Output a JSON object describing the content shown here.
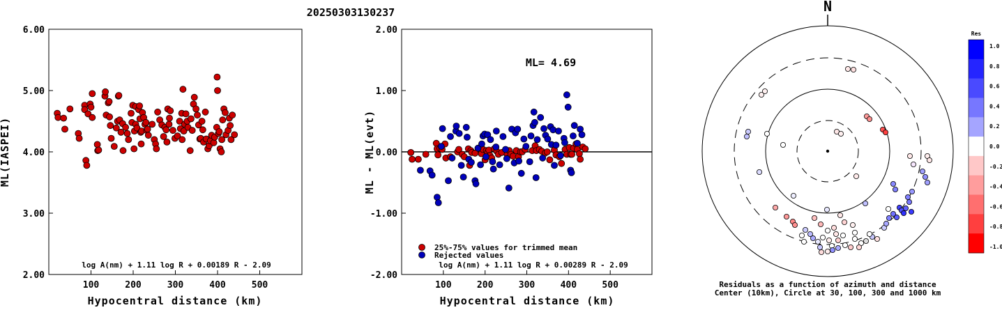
{
  "title": "20250303130237",
  "chart_data": [
    {
      "type": "scatter",
      "name": "left",
      "xlabel": "Hypocentral distance (km)",
      "ylabel": "ML(IASPEI)",
      "xlim": [
        0,
        600
      ],
      "ylim": [
        2.0,
        6.0
      ],
      "xticks": [
        "100",
        "200",
        "300",
        "400",
        "500"
      ],
      "yticks": [
        "2.00",
        "3.00",
        "4.00",
        "5.00",
        "6.00"
      ],
      "formula": "log A(nm) + 1.11 log R + 0.00189 R - 2.09",
      "marker_color": "#cc0000",
      "points": [
        [
          20,
          4.63
        ],
        [
          22,
          4.56
        ],
        [
          35,
          4.55
        ],
        [
          38,
          4.37
        ],
        [
          50,
          4.7
        ],
        [
          70,
          4.3
        ],
        [
          72,
          4.22
        ],
        [
          85,
          4.76
        ],
        [
          85,
          4.69
        ],
        [
          88,
          3.86
        ],
        [
          90,
          3.78
        ],
        [
          93,
          4.62
        ],
        [
          98,
          4.78
        ],
        [
          100,
          4.73
        ],
        [
          103,
          4.56
        ],
        [
          103,
          4.95
        ],
        [
          115,
          4.12
        ],
        [
          116,
          4.02
        ],
        [
          118,
          4.03
        ],
        [
          133,
          4.91
        ],
        [
          134,
          4.98
        ],
        [
          136,
          4.6
        ],
        [
          141,
          4.8
        ],
        [
          143,
          4.82
        ],
        [
          144,
          4.57
        ],
        [
          146,
          4.43
        ],
        [
          148,
          4.22
        ],
        [
          155,
          4.09
        ],
        [
          160,
          4.39
        ],
        [
          163,
          4.5
        ],
        [
          165,
          4.91
        ],
        [
          166,
          4.92
        ],
        [
          168,
          4.52
        ],
        [
          171,
          4.32
        ],
        [
          175,
          4.46
        ],
        [
          176,
          4.02
        ],
        [
          182,
          4.4
        ],
        [
          186,
          4.3
        ],
        [
          189,
          4.2
        ],
        [
          195,
          4.63
        ],
        [
          197,
          4.48
        ],
        [
          199,
          4.76
        ],
        [
          202,
          4.05
        ],
        [
          203,
          4.34
        ],
        [
          206,
          4.74
        ],
        [
          206,
          4.45
        ],
        [
          209,
          4.39
        ],
        [
          213,
          4.69
        ],
        [
          215,
          4.75
        ],
        [
          216,
          4.54
        ],
        [
          218,
          4.32
        ],
        [
          219,
          4.13
        ],
        [
          220,
          4.34
        ],
        [
          222,
          4.64
        ],
        [
          225,
          4.56
        ],
        [
          228,
          4.45
        ],
        [
          230,
          4.48
        ],
        [
          232,
          4.35
        ],
        [
          234,
          4.37
        ],
        [
          236,
          4.27
        ],
        [
          245,
          4.45
        ],
        [
          250,
          4.2
        ],
        [
          253,
          4.13
        ],
        [
          255,
          4.05
        ],
        [
          258,
          4.65
        ],
        [
          263,
          4.52
        ],
        [
          268,
          4.44
        ],
        [
          272,
          4.25
        ],
        [
          275,
          4.4
        ],
        [
          278,
          4.36
        ],
        [
          280,
          4.16
        ],
        [
          282,
          4.7
        ],
        [
          285,
          4.45
        ],
        [
          286,
          4.55
        ],
        [
          288,
          4.67
        ],
        [
          294,
          4.35
        ],
        [
          299,
          4.22
        ],
        [
          305,
          4.26
        ],
        [
          310,
          4.5
        ],
        [
          312,
          4.38
        ],
        [
          315,
          4.63
        ],
        [
          316,
          4.2
        ],
        [
          318,
          5.02
        ],
        [
          320,
          4.34
        ],
        [
          322,
          4.45
        ],
        [
          325,
          4.62
        ],
        [
          328,
          4.5
        ],
        [
          330,
          4.4
        ],
        [
          335,
          4.02
        ],
        [
          337,
          4.54
        ],
        [
          340,
          4.35
        ],
        [
          343,
          4.78
        ],
        [
          345,
          4.89
        ],
        [
          349,
          4.7
        ],
        [
          352,
          4.6
        ],
        [
          355,
          4.44
        ],
        [
          358,
          4.21
        ],
        [
          360,
          4.22
        ],
        [
          363,
          4.5
        ],
        [
          365,
          4.36
        ],
        [
          367,
          4.16
        ],
        [
          371,
          4.65
        ],
        [
          373,
          4.21
        ],
        [
          377,
          4.05
        ],
        [
          380,
          4.1
        ],
        [
          383,
          4.18
        ],
        [
          386,
          4.27
        ],
        [
          391,
          4.15
        ],
        [
          393,
          4.24
        ],
        [
          398,
          4.4
        ],
        [
          399,
          5.22
        ],
        [
          400,
          5.0
        ],
        [
          402,
          4.3
        ],
        [
          404,
          4.33
        ],
        [
          406,
          4.05
        ],
        [
          409,
          4.0
        ],
        [
          410,
          4.2
        ],
        [
          412,
          4.52
        ],
        [
          415,
          4.7
        ],
        [
          418,
          4.64
        ],
        [
          420,
          4.28
        ],
        [
          425,
          4.35
        ],
        [
          428,
          4.55
        ],
        [
          430,
          4.43
        ],
        [
          432,
          4.2
        ],
        [
          435,
          4.6
        ],
        [
          440,
          4.28
        ]
      ]
    },
    {
      "type": "scatter",
      "name": "middle",
      "xlabel": "Hypocentral distance (km)",
      "ylabel": "ML - ML(evt)",
      "xlim": [
        0,
        600
      ],
      "ylim": [
        -2.0,
        2.0
      ],
      "xticks": [
        "100",
        "200",
        "300",
        "400",
        "500"
      ],
      "yticks": [
        "-2.00",
        "-1.00",
        "0.00",
        "1.00",
        "2.00"
      ],
      "annotation": "ML= 4.69",
      "legend": [
        "25%-75% values for trimmed mean",
        "Rejected values"
      ],
      "formula": "log A(nm) + 1.11 log R + 0.00289 R - 2.09",
      "series": [
        {
          "color": "#cc0000",
          "points": [
            [
              22,
              -0.01
            ],
            [
              25,
              -0.12
            ],
            [
              40,
              -0.12
            ],
            [
              58,
              -0.04
            ],
            [
              83,
              0.14
            ],
            [
              85,
              0.05
            ],
            [
              87,
              -0.05
            ],
            [
              92,
              0.06
            ],
            [
              97,
              0.04
            ],
            [
              104,
              0.13
            ],
            [
              106,
              -0.1
            ],
            [
              117,
              -0.08
            ],
            [
              134,
              0.0
            ],
            [
              137,
              0.04
            ],
            [
              145,
              -0.04
            ],
            [
              150,
              -0.08
            ],
            [
              160,
              0.05
            ],
            [
              163,
              -0.22
            ],
            [
              166,
              0.02
            ],
            [
              168,
              -0.01
            ],
            [
              176,
              -0.02
            ],
            [
              191,
              -0.03
            ],
            [
              195,
              0.04
            ],
            [
              200,
              -0.13
            ],
            [
              203,
              0.02
            ],
            [
              206,
              -0.01
            ],
            [
              209,
              0.03
            ],
            [
              212,
              -0.06
            ],
            [
              216,
              -0.1
            ],
            [
              222,
              0.05
            ],
            [
              228,
              0.01
            ],
            [
              232,
              -0.04
            ],
            [
              240,
              -0.01
            ],
            [
              253,
              -0.04
            ],
            [
              258,
              0.02
            ],
            [
              262,
              -0.04
            ],
            [
              267,
              -0.07
            ],
            [
              275,
              0.02
            ],
            [
              280,
              -0.08
            ],
            [
              285,
              0.0
            ],
            [
              289,
              0.0
            ],
            [
              296,
              0.04
            ],
            [
              313,
              0.02
            ],
            [
              320,
              0.1
            ],
            [
              323,
              0.02
            ],
            [
              330,
              0.04
            ],
            [
              336,
              0.01
            ],
            [
              344,
              -0.02
            ],
            [
              349,
              0.0
            ],
            [
              355,
              -0.13
            ],
            [
              366,
              0.03
            ],
            [
              370,
              -0.05
            ],
            [
              378,
              -0.08
            ],
            [
              383,
              -0.19
            ],
            [
              392,
              0.04
            ],
            [
              396,
              -0.04
            ],
            [
              402,
              0.07
            ],
            [
              405,
              -0.04
            ],
            [
              408,
              -0.04
            ],
            [
              412,
              0.06
            ],
            [
              418,
              0.13
            ],
            [
              421,
              0.04
            ],
            [
              426,
              -0.03
            ],
            [
              428,
              -0.12
            ],
            [
              434,
              0.08
            ],
            [
              440,
              0.05
            ]
          ]
        },
        {
          "color": "#0000bb",
          "points": [
            [
              45,
              -0.3
            ],
            [
              68,
              -0.31
            ],
            [
              73,
              -0.38
            ],
            [
              85,
              -0.74
            ],
            [
              88,
              -0.83
            ],
            [
              95,
              0.09
            ],
            [
              98,
              0.38
            ],
            [
              112,
              -0.47
            ],
            [
              117,
              0.25
            ],
            [
              121,
              -0.1
            ],
            [
              130,
              0.34
            ],
            [
              131,
              0.42
            ],
            [
              138,
              0.3
            ],
            [
              143,
              -0.22
            ],
            [
              148,
              -0.41
            ],
            [
              155,
              0.4
            ],
            [
              157,
              0.24
            ],
            [
              161,
              -0.12
            ],
            [
              167,
              -0.17
            ],
            [
              176,
              -0.47
            ],
            [
              178,
              -0.52
            ],
            [
              183,
              0.06
            ],
            [
              189,
              -0.21
            ],
            [
              192,
              0.13
            ],
            [
              195,
              0.26
            ],
            [
              199,
              0.29
            ],
            [
              202,
              -0.08
            ],
            [
              206,
              0.28
            ],
            [
              213,
              0.2
            ],
            [
              218,
              -0.16
            ],
            [
              220,
              -0.28
            ],
            [
              226,
              0.08
            ],
            [
              227,
              0.34
            ],
            [
              235,
              -0.21
            ],
            [
              243,
              0.25
            ],
            [
              249,
              0.04
            ],
            [
              252,
              -0.11
            ],
            [
              257,
              -0.59
            ],
            [
              264,
              0.37
            ],
            [
              270,
              -0.18
            ],
            [
              273,
              0.31
            ],
            [
              278,
              0.37
            ],
            [
              281,
              -0.15
            ],
            [
              287,
              -0.35
            ],
            [
              293,
              0.21
            ],
            [
              298,
              0.09
            ],
            [
              307,
              -0.16
            ],
            [
              310,
              0.26
            ],
            [
              315,
              0.43
            ],
            [
              317,
              0.65
            ],
            [
              319,
              0.48
            ],
            [
              322,
              -0.42
            ],
            [
              325,
              0.2
            ],
            [
              333,
              0.56
            ],
            [
              338,
              -0.1
            ],
            [
              341,
              0.38
            ],
            [
              345,
              0.27
            ],
            [
              350,
              0.21
            ],
            [
              357,
              0.41
            ],
            [
              359,
              0.12
            ],
            [
              363,
              0.36
            ],
            [
              366,
              -0.22
            ],
            [
              370,
              0.11
            ],
            [
              376,
              0.34
            ],
            [
              381,
              -0.06
            ],
            [
              389,
              0.22
            ],
            [
              391,
              0.15
            ],
            [
              396,
              0.93
            ],
            [
              399,
              0.73
            ],
            [
              405,
              -0.3
            ],
            [
              407,
              -0.34
            ],
            [
              411,
              0.26
            ],
            [
              414,
              0.43
            ],
            [
              421,
              0.14
            ],
            [
              428,
              0.37
            ],
            [
              432,
              0.28
            ]
          ]
        }
      ]
    },
    {
      "type": "scatter",
      "name": "polar",
      "title": "N",
      "caption": [
        "Residuals as a function of azimuth and distance",
        "Center (10km), Circle at 30, 100, 300 and 1000 km"
      ],
      "colorbar": {
        "title": "Res",
        "ticks": [
          "1.0",
          "0.8",
          "0.6",
          "0.4",
          "0.2",
          "0.0",
          "-0.2",
          "-0.4",
          "-0.6",
          "-0.8",
          "-1.0"
        ],
        "colors": [
          "#0000ff",
          "#2525ff",
          "#4a4aff",
          "#7777ff",
          "#a5a5ff",
          "#ffffff",
          "#ffc8c8",
          "#ff9d9d",
          "#ff6f6f",
          "#ff3f3f",
          "#ff0000"
        ]
      }
    }
  ]
}
